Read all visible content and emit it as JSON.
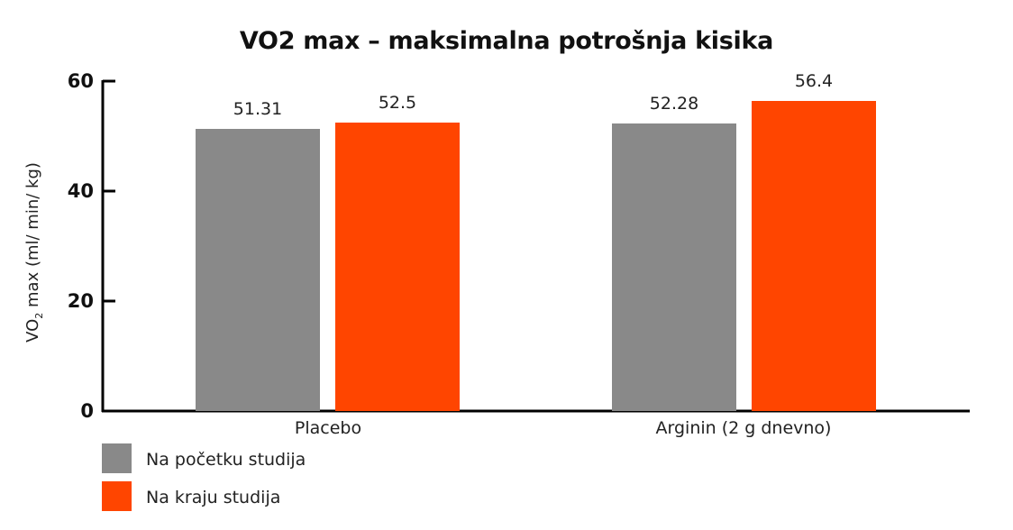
{
  "chart_data": {
    "type": "bar",
    "title": "VO2 max – maksimalna potrošnja kisika",
    "xlabel": "",
    "ylabel": "VO2 max (ml/ min/ kg)",
    "ylim": [
      0,
      60
    ],
    "yticks": [
      "0",
      "20",
      "40",
      "60"
    ],
    "categories": [
      "Placebo",
      "Arginin (2 g dnevno)"
    ],
    "series": [
      {
        "name": "Na početku studija",
        "color": "#898989",
        "values": [
          51.31,
          52.28
        ],
        "labels": [
          "51.31",
          "52.28"
        ]
      },
      {
        "name": "Na kraju studija",
        "color": "#ff4500",
        "values": [
          52.5,
          56.4
        ],
        "labels": [
          "52.5",
          "56.4"
        ]
      }
    ],
    "grid": false,
    "legend_position": "bottom-left"
  },
  "labels": {
    "ylabel_main": "VO",
    "ylabel_sub": "2",
    "ylabel_rest": " max (ml/ min/ kg)"
  }
}
